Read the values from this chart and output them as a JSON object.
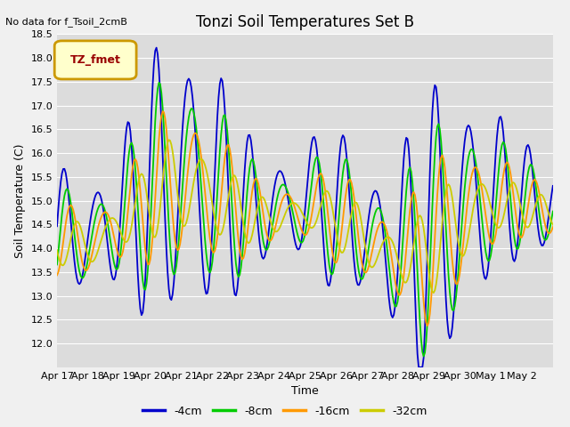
{
  "title": "Tonzi Soil Temperatures Set B",
  "xlabel": "Time",
  "ylabel": "Soil Temperature (C)",
  "annotation": "No data for f_Tsoil_2cmB",
  "legend_label": "TZ_fmet",
  "ylim": [
    11.5,
    18.5
  ],
  "yticks": [
    12.0,
    12.5,
    13.0,
    13.5,
    14.0,
    14.5,
    15.0,
    15.5,
    16.0,
    16.5,
    17.0,
    17.5,
    18.0,
    18.5
  ],
  "xtick_labels": [
    "Apr 17",
    "Apr 18",
    "Apr 19",
    "Apr 20",
    "Apr 21",
    "Apr 22",
    "Apr 23",
    "Apr 24",
    "Apr 25",
    "Apr 26",
    "Apr 27",
    "Apr 28",
    "Apr 29",
    "Apr 30",
    "May 1",
    "May 2"
  ],
  "line_colors": [
    "#0000cc",
    "#00cc00",
    "#ff9900",
    "#cccc00"
  ],
  "line_labels": [
    "-4cm",
    "-8cm",
    "-16cm",
    "-32cm"
  ],
  "plot_bg_color": "#dcdcdc",
  "fig_bg_color": "#f0f0f0",
  "grid_color": "#ffffff",
  "title_fontsize": 12,
  "label_fontsize": 9,
  "tick_fontsize": 8,
  "legend_box_facecolor": "#ffffcc",
  "legend_box_edgecolor": "#cc9900",
  "legend_text_color": "#990000"
}
